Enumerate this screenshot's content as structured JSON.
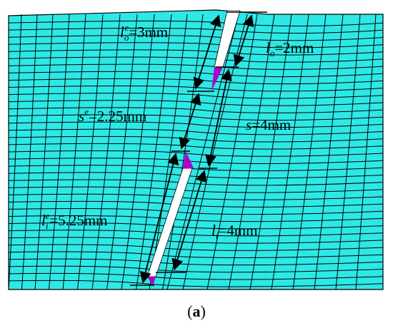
{
  "colors": {
    "mesh_fill": "#2ee8e6",
    "mesh_line": "#000000",
    "crack": "#ffffff",
    "crack_tip": "#b000c8"
  },
  "labels": {
    "lo_e": {
      "main": "l",
      "sub": "o",
      "sup": "e",
      "value": "=3mm"
    },
    "lo": {
      "main": "l",
      "sub": "o",
      "value": "=2mm"
    },
    "s_e": {
      "main": "s",
      "sup": "e",
      "value": "=2.25mm"
    },
    "s": {
      "main": "s",
      "value": "=4mm"
    },
    "li_e": {
      "main": "l",
      "sub": "i",
      "sup": "e",
      "value": "=5.25mm"
    },
    "li": {
      "main": "l",
      "sub": "i",
      "value": "=4mm"
    }
  },
  "caption": {
    "open": "(",
    "letter": "a",
    "close": ")"
  }
}
